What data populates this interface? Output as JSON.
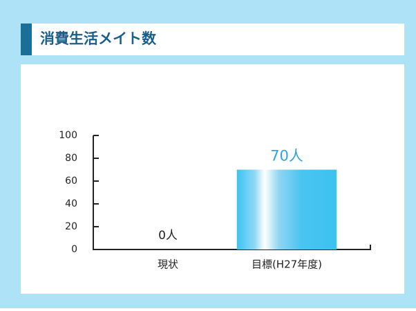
{
  "chart_data": {
    "type": "bar",
    "title": "消費生活メイト数",
    "categories": [
      "現状",
      "目標(H27年度)"
    ],
    "values": [
      0,
      70
    ],
    "value_labels": [
      "0人",
      "70人"
    ],
    "value_label_colors": [
      "#222222",
      "#2aa6e0"
    ],
    "color": "#3cc2f0",
    "ylim": [
      0,
      100
    ],
    "yticks": [
      0,
      20,
      40,
      60,
      80,
      100
    ]
  }
}
